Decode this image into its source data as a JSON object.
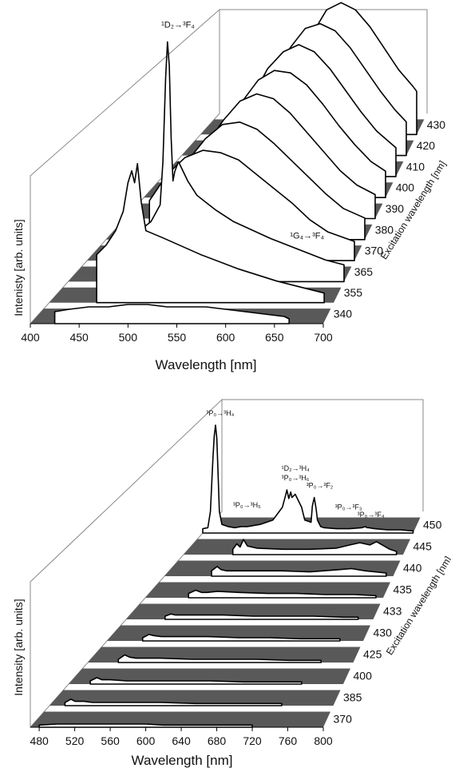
{
  "chart_data": [
    {
      "type": "line",
      "xlabel": "Wavelength [nm]",
      "ylabel": "Intenisty [arb. units]",
      "zlabel": "Excitation wavelength [nm]",
      "xlim": [
        400,
        700
      ],
      "xticks": [
        "400",
        "450",
        "500",
        "550",
        "600",
        "650",
        "700"
      ],
      "annotations": [
        {
          "text": "¹D₂→³F₄",
          "near_series": "365",
          "x": 510
        },
        {
          "text": "¹G₄→³F₄",
          "near_series": "365",
          "x": 650
        }
      ],
      "series": [
        {
          "name": "340",
          "x": [
            425,
            440,
            460,
            480,
            500,
            520,
            540,
            560,
            580,
            600,
            620,
            640,
            660,
            665
          ],
          "y": [
            0.05,
            0.06,
            0.07,
            0.07,
            0.08,
            0.08,
            0.07,
            0.07,
            0.07,
            0.06,
            0.05,
            0.04,
            0.03,
            0.02
          ]
        },
        {
          "name": "355",
          "x": [
            450,
            460,
            470,
            478,
            483,
            487,
            490,
            493,
            497,
            502,
            520,
            560,
            600,
            640,
            680,
            690
          ],
          "y": [
            0.2,
            0.24,
            0.3,
            0.38,
            0.5,
            0.55,
            0.5,
            0.58,
            0.42,
            0.3,
            0.27,
            0.2,
            0.14,
            0.09,
            0.05,
            0.04
          ]
        },
        {
          "name": "365",
          "x": [
            470,
            480,
            490,
            500,
            503,
            506,
            508,
            510,
            512,
            514,
            516,
            520,
            530,
            540,
            560,
            580,
            620,
            660,
            680,
            700
          ],
          "y": [
            0.2,
            0.22,
            0.25,
            0.32,
            0.5,
            0.85,
            1.0,
            0.9,
            0.6,
            0.42,
            0.46,
            0.5,
            0.42,
            0.36,
            0.3,
            0.25,
            0.18,
            0.12,
            0.09,
            0.07
          ]
        },
        {
          "name": "370",
          "x": [
            470,
            490,
            510,
            530,
            550,
            570,
            590,
            610,
            630,
            650,
            670,
            700
          ],
          "y": [
            0.25,
            0.36,
            0.43,
            0.46,
            0.45,
            0.42,
            0.36,
            0.3,
            0.24,
            0.17,
            0.12,
            0.08
          ]
        },
        {
          "name": "380",
          "x": [
            475,
            495,
            515,
            535,
            555,
            575,
            595,
            615,
            635,
            655,
            675,
            700
          ],
          "y": [
            0.22,
            0.33,
            0.42,
            0.48,
            0.49,
            0.46,
            0.4,
            0.33,
            0.26,
            0.19,
            0.13,
            0.09
          ]
        },
        {
          "name": "390",
          "x": [
            478,
            498,
            518,
            538,
            558,
            578,
            598,
            618,
            638,
            658,
            678,
            700
          ],
          "y": [
            0.2,
            0.31,
            0.41,
            0.49,
            0.52,
            0.5,
            0.44,
            0.36,
            0.28,
            0.2,
            0.14,
            0.1
          ]
        },
        {
          "name": "400",
          "x": [
            482,
            502,
            522,
            542,
            562,
            582,
            602,
            622,
            642,
            662,
            682,
            700
          ],
          "y": [
            0.16,
            0.28,
            0.4,
            0.49,
            0.53,
            0.52,
            0.47,
            0.39,
            0.3,
            0.22,
            0.15,
            0.11
          ]
        },
        {
          "name": "410",
          "x": [
            495,
            515,
            535,
            555,
            575,
            595,
            615,
            635,
            655,
            675,
            700
          ],
          "y": [
            0.2,
            0.33,
            0.45,
            0.52,
            0.55,
            0.52,
            0.45,
            0.36,
            0.27,
            0.19,
            0.12
          ]
        },
        {
          "name": "420",
          "x": [
            505,
            525,
            545,
            565,
            585,
            605,
            625,
            645,
            665,
            685,
            700
          ],
          "y": [
            0.18,
            0.32,
            0.45,
            0.53,
            0.55,
            0.52,
            0.45,
            0.36,
            0.27,
            0.19,
            0.14
          ]
        },
        {
          "name": "430",
          "x": [
            515,
            535,
            555,
            575,
            595,
            615,
            635,
            655,
            675,
            695,
            700
          ],
          "y": [
            0.12,
            0.27,
            0.42,
            0.52,
            0.55,
            0.52,
            0.45,
            0.36,
            0.27,
            0.2,
            0.18
          ]
        }
      ]
    },
    {
      "type": "line",
      "xlabel": "Wavelength [nm]",
      "ylabel": "Intensity [arb. units]",
      "zlabel": "Excitation wavelength [nm]",
      "xlim": [
        470,
        800
      ],
      "xticks": [
        "480",
        "520",
        "560",
        "600",
        "640",
        "680",
        "720",
        "760",
        "800"
      ],
      "annotations": [
        {
          "text": "³P₀→³H₄",
          "near_series": "450",
          "x": 488
        },
        {
          "text": "³P₀→³H₅",
          "near_series": "450",
          "x": 530
        },
        {
          "text": "³P₀→³H₆",
          "near_series": "450",
          "x": 606
        },
        {
          "text": "¹D₂→³H₄",
          "near_series": "450",
          "x": 606
        },
        {
          "text": "³P₀→³F₂",
          "near_series": "450",
          "x": 645
        },
        {
          "text": "³P₀→³F₃",
          "near_series": "450",
          "x": 690
        },
        {
          "text": "³P₀→³F₄",
          "near_series": "450",
          "x": 725
        }
      ],
      "series": [
        {
          "name": "370",
          "x": [
            480,
            500,
            520,
            540,
            560,
            580,
            600,
            620,
            640,
            660,
            680,
            700,
            720
          ],
          "y": [
            0.02,
            0.03,
            0.03,
            0.03,
            0.03,
            0.03,
            0.03,
            0.02,
            0.02,
            0.02,
            0.02,
            0.02,
            0.02
          ]
        },
        {
          "name": "385",
          "x": [
            488,
            495,
            500,
            510,
            520,
            540,
            560,
            600,
            640,
            680,
            720,
            740
          ],
          "y": [
            0.03,
            0.06,
            0.04,
            0.04,
            0.03,
            0.03,
            0.03,
            0.03,
            0.02,
            0.02,
            0.02,
            0.02
          ]
        },
        {
          "name": "400",
          "x": [
            496,
            504,
            510,
            520,
            540,
            560,
            600,
            640,
            680,
            720,
            750
          ],
          "y": [
            0.03,
            0.06,
            0.04,
            0.04,
            0.03,
            0.03,
            0.03,
            0.03,
            0.02,
            0.02,
            0.02
          ]
        },
        {
          "name": "425",
          "x": [
            508,
            516,
            522,
            530,
            560,
            600,
            640,
            680,
            720,
            760
          ],
          "y": [
            0.03,
            0.07,
            0.05,
            0.04,
            0.04,
            0.03,
            0.03,
            0.03,
            0.02,
            0.02
          ]
        },
        {
          "name": "430",
          "x": [
            516,
            524,
            530,
            540,
            560,
            600,
            640,
            680,
            720,
            760,
            770
          ],
          "y": [
            0.03,
            0.06,
            0.05,
            0.04,
            0.04,
            0.04,
            0.03,
            0.03,
            0.02,
            0.02,
            0.02
          ]
        },
        {
          "name": "433",
          "x": [
            522,
            530,
            536,
            545,
            560,
            600,
            640,
            680,
            720,
            760,
            780
          ],
          "y": [
            0.03,
            0.05,
            0.04,
            0.04,
            0.04,
            0.04,
            0.03,
            0.03,
            0.03,
            0.02,
            0.02
          ]
        },
        {
          "name": "435",
          "x": [
            530,
            540,
            548,
            556,
            570,
            600,
            640,
            680,
            720,
            760,
            790
          ],
          "y": [
            0.04,
            0.07,
            0.05,
            0.05,
            0.06,
            0.05,
            0.04,
            0.04,
            0.03,
            0.03,
            0.02
          ]
        },
        {
          "name": "440",
          "x": [
            538,
            546,
            552,
            560,
            580,
            600,
            640,
            680,
            720,
            740,
            760,
            790
          ],
          "y": [
            0.05,
            0.09,
            0.06,
            0.05,
            0.05,
            0.05,
            0.05,
            0.04,
            0.06,
            0.07,
            0.05,
            0.03
          ]
        },
        {
          "name": "445",
          "x": [
            544,
            550,
            555,
            560,
            566,
            580,
            620,
            660,
            700,
            720,
            735,
            750,
            760,
            780,
            790
          ],
          "y": [
            0.05,
            0.1,
            0.07,
            0.14,
            0.08,
            0.06,
            0.05,
            0.05,
            0.06,
            0.09,
            0.11,
            0.09,
            0.12,
            0.05,
            0.03
          ]
        },
        {
          "name": "450",
          "x": [
            470,
            478,
            482,
            486,
            488,
            490,
            492,
            494,
            496,
            500,
            510,
            520,
            530,
            540,
            560,
            580,
            595,
            600,
            602,
            605,
            608,
            610,
            615,
            625,
            630,
            640,
            642,
            645,
            648,
            650,
            655,
            660,
            680,
            700,
            720,
            725,
            728,
            730,
            740,
            760,
            780,
            800
          ],
          "y": [
            0.04,
            0.05,
            0.2,
            0.7,
            0.9,
            1.0,
            0.88,
            0.55,
            0.2,
            0.08,
            0.06,
            0.05,
            0.06,
            0.06,
            0.08,
            0.12,
            0.24,
            0.35,
            0.4,
            0.32,
            0.38,
            0.33,
            0.36,
            0.24,
            0.12,
            0.1,
            0.25,
            0.33,
            0.22,
            0.12,
            0.06,
            0.05,
            0.04,
            0.04,
            0.05,
            0.06,
            0.05,
            0.05,
            0.04,
            0.03,
            0.03,
            0.02
          ]
        }
      ]
    }
  ]
}
